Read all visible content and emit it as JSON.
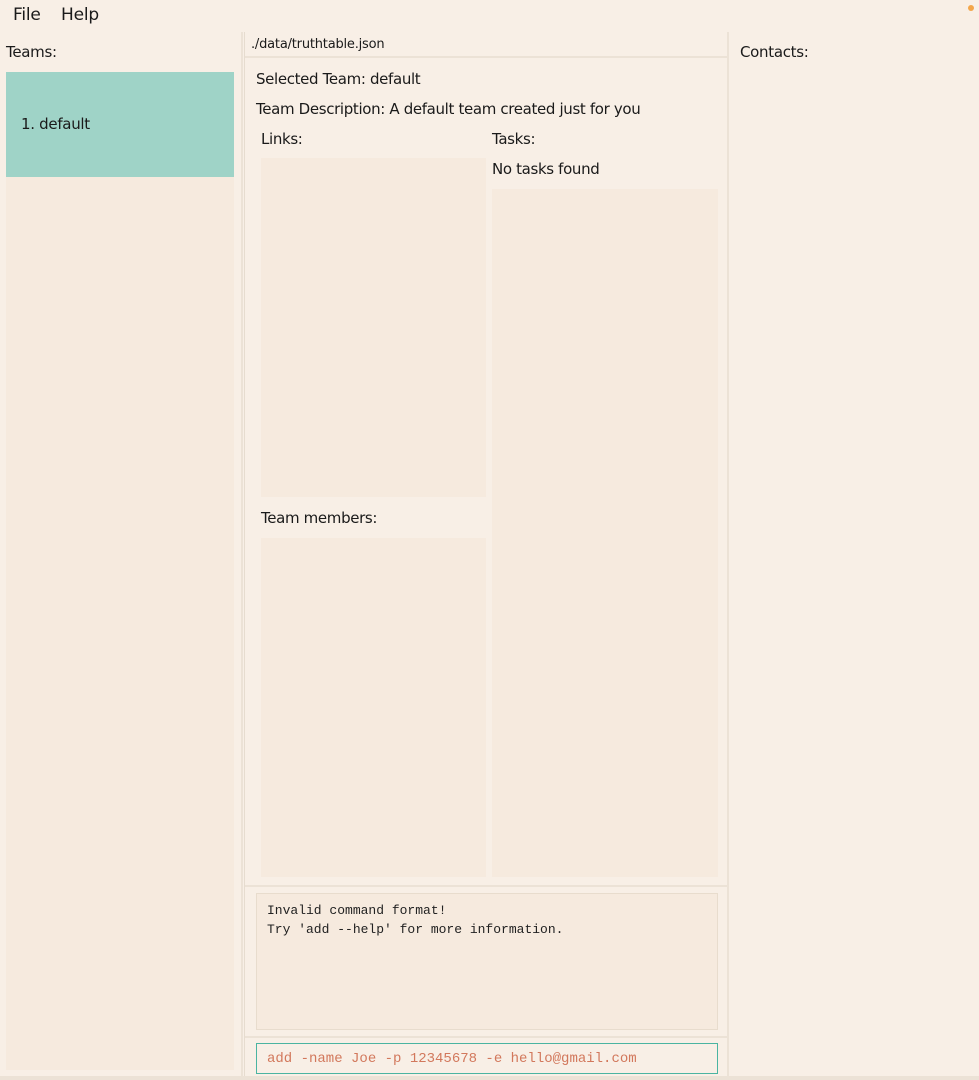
{
  "menu": {
    "file": "File",
    "help": "Help"
  },
  "teams_panel": {
    "label": "Teams:",
    "teams": [
      {
        "label": "1. default",
        "selected": true
      }
    ]
  },
  "center": {
    "file_path": "./data/truthtable.json",
    "selected_team": "Selected Team: default",
    "team_description": "Team Description: A default team created just for you",
    "links_label": "Links:",
    "tasks_label": "Tasks:",
    "tasks_empty": "No tasks found",
    "members_label": "Team members:",
    "result_text": "Invalid command format!\nTry 'add --help' for more information.",
    "command_value": "add -name Joe -p 12345678 -e hello@gmail.com"
  },
  "contacts_panel": {
    "label": "Contacts:"
  },
  "colors": {
    "background": "#f8efe6",
    "selected_team": "#9fd3c7",
    "command_border": "#4ab4a1",
    "command_text": "#d2785c",
    "status_dot": "#f3a64a"
  }
}
